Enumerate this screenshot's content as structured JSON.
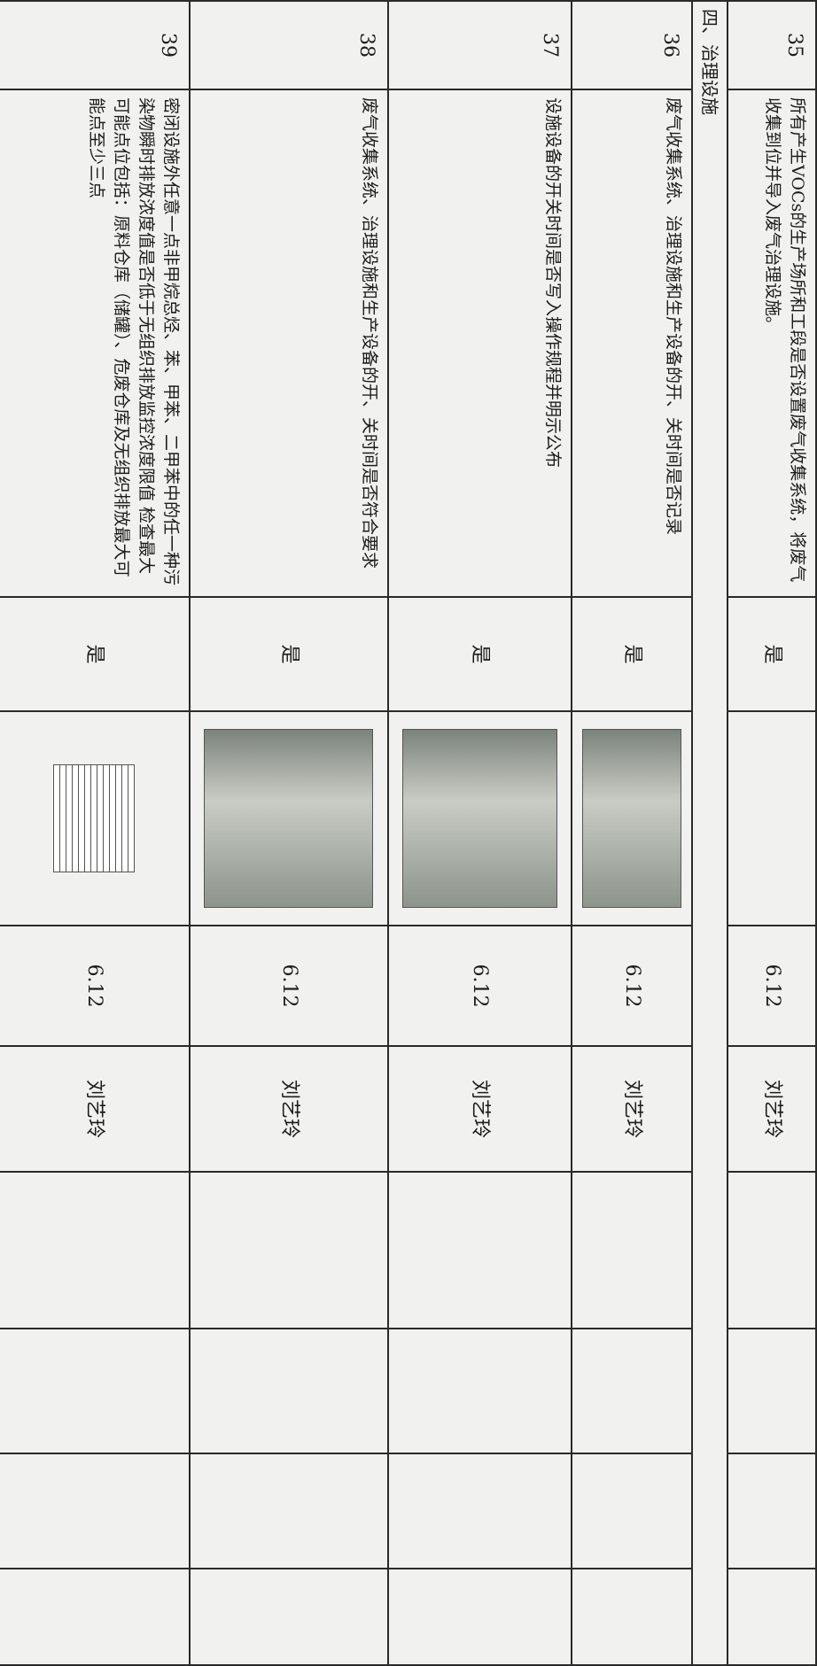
{
  "section": "四、治理设施",
  "rows": [
    {
      "num": "35",
      "item": "所有产生VOCs的生产场所和工段是否设置废气收集系统，将废气收集到位并导入废气治理设施。",
      "result": "是",
      "date": "6.12",
      "person": "刘艺玲"
    },
    {
      "num": "36",
      "item": "废气收集系统、治理设施和生产设备的开、关时间是否记录",
      "result": "是",
      "date": "6.12",
      "person": "刘艺玲"
    },
    {
      "num": "37",
      "item": "设施设备的开关时间是否写入操作规程并明示公布",
      "result": "是",
      "date": "6.12",
      "person": "刘艺玲"
    },
    {
      "num": "38",
      "item": "废气收集系统、治理设施和生产设备的开、关时间是否符合要求",
      "result": "是",
      "date": "6.12",
      "person": "刘艺玲"
    },
    {
      "num": "39",
      "item": "密闭设施外任意一点非甲烷总烃、苯、甲苯、二甲苯中的任一种污染物瞬时排放浓度值是否低于无组织排放监控浓度限值 检查最大可能点位包括：原料仓库（储罐）、危废仓库及无组织排放最大可能点至少三点",
      "result": "是",
      "date": "6.12",
      "person": "刘艺玲"
    }
  ]
}
